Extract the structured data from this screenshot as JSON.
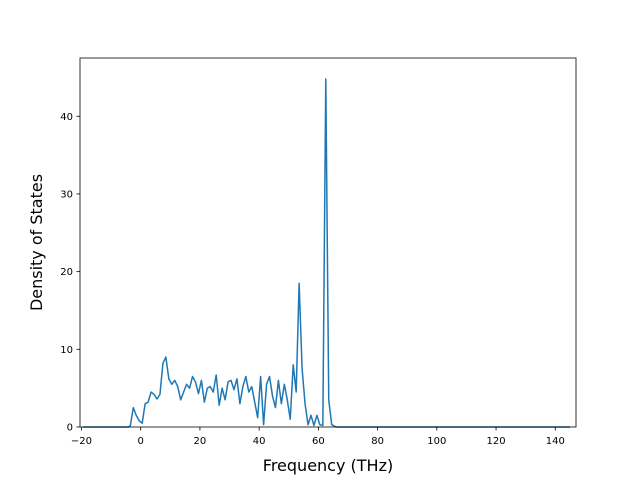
{
  "chart_data": {
    "type": "line",
    "title": "",
    "xlabel": "Frequency (THz)",
    "ylabel": "Density of States",
    "xlim": [
      -20.5,
      147
    ],
    "ylim": [
      0,
      47.5
    ],
    "x_ticks": [
      -20,
      0,
      20,
      40,
      60,
      80,
      100,
      120,
      140
    ],
    "x_tick_labels": [
      "−20",
      "0",
      "20",
      "40",
      "60",
      "80",
      "100",
      "120",
      "140"
    ],
    "y_ticks": [
      0,
      10,
      20,
      30,
      40
    ],
    "y_tick_labels": [
      "0",
      "10",
      "20",
      "30",
      "40"
    ],
    "grid": false,
    "legend": "none",
    "colors": {
      "line": "#1f77b4",
      "axes": "#000000",
      "background": "#ffffff"
    },
    "series": [
      {
        "x": [
          -19.5,
          -10,
          -4,
          -3.5,
          -2.5,
          -1.5,
          -0.5,
          0.5,
          1.5,
          2.5,
          3.5,
          4.5,
          5.5,
          6.5,
          7.5,
          8.5,
          9.5,
          10.5,
          11.5,
          12.5,
          13.5,
          14.5,
          15.5,
          16.5,
          17.5,
          18.5,
          19.5,
          20.5,
          21.5,
          22.5,
          23.5,
          24.5,
          25.5,
          26.5,
          27.5,
          28.5,
          29.5,
          30.5,
          31.5,
          32.5,
          33.5,
          34.5,
          35.5,
          36.5,
          37.5,
          38.5,
          39.5,
          40.5,
          41.5,
          42.5,
          43.5,
          44.5,
          45.5,
          46.5,
          47.5,
          48.5,
          49.5,
          50.5,
          51.5,
          52.5,
          53.5,
          54.5,
          55.5,
          56.5,
          57.5,
          58.5,
          59.5,
          60.5,
          61.5,
          62.5,
          63.5,
          64.5,
          66,
          80,
          100,
          120,
          145
        ],
        "y": [
          0,
          0,
          0,
          0.2,
          2.5,
          1.5,
          0.8,
          0.5,
          3.0,
          3.2,
          4.5,
          4.2,
          3.6,
          4.2,
          8.2,
          9.0,
          6.2,
          5.5,
          6.0,
          5.2,
          3.5,
          4.5,
          5.5,
          5.0,
          6.5,
          5.8,
          4.3,
          6.0,
          3.2,
          5.0,
          5.2,
          4.5,
          6.7,
          2.8,
          5.0,
          3.5,
          5.8,
          6.0,
          4.8,
          6.2,
          3.0,
          5.2,
          6.5,
          4.5,
          5.2,
          3.2,
          1.2,
          6.5,
          0.3,
          5.5,
          6.5,
          4.0,
          2.5,
          6.0,
          3.0,
          5.5,
          3.5,
          1.0,
          8.0,
          4.5,
          18.5,
          7.5,
          3.0,
          0.3,
          1.5,
          0.2,
          1.5,
          0.3,
          0.2,
          44.8,
          3.5,
          0.3,
          0,
          0,
          0,
          0,
          0
        ]
      }
    ]
  }
}
